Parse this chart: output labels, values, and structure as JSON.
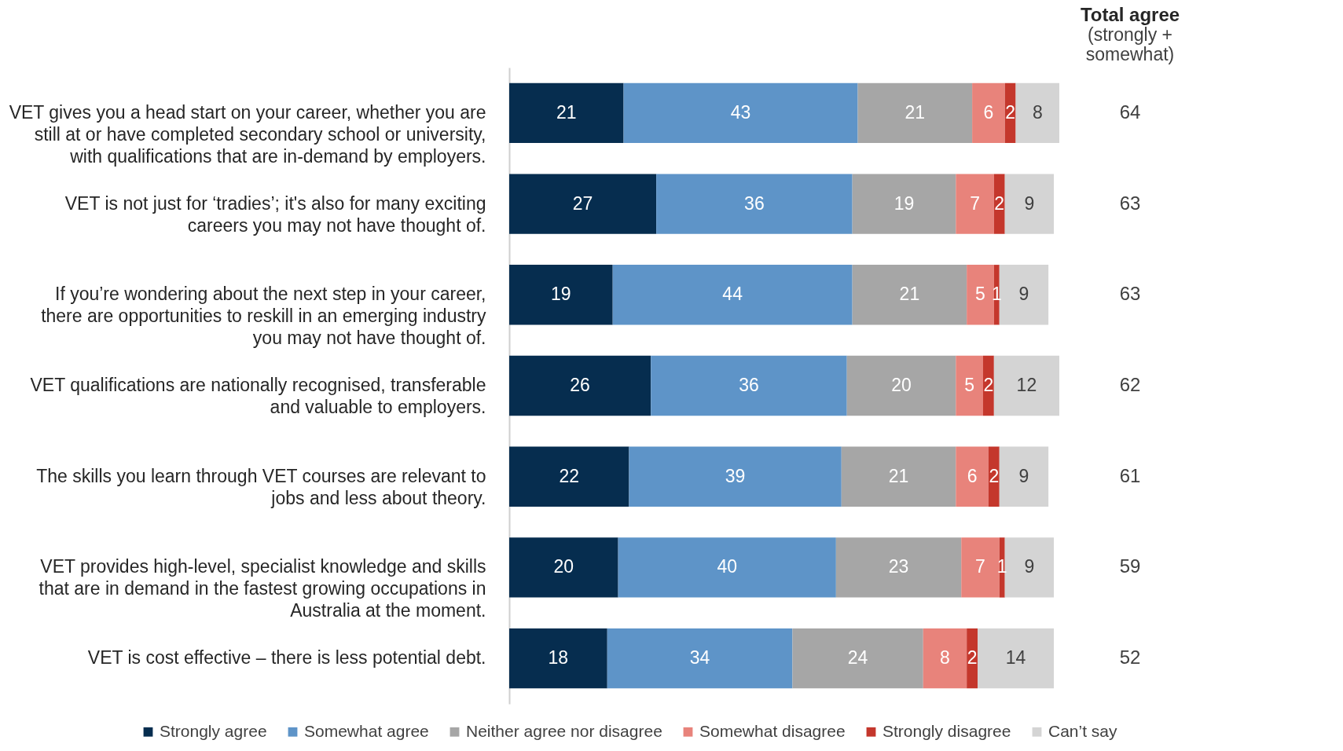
{
  "chart_data": {
    "type": "bar",
    "orientation": "horizontal",
    "stacked": true,
    "data_labels": true,
    "legend": "bottom",
    "categories": [
      "VET gives you a head start on your career, whether you are still at or have completed secondary school or university, with qualifications that are in-demand by employers.",
      "VET is not just for ‘tradies’; it's also for many exciting careers you may not have thought of.",
      "If you’re wondering about the next step in your career, there are opportunities to reskill in an emerging industry you may not have thought of.",
      "VET qualifications are nationally recognised, transferable and valuable to employers.",
      "The skills you learn through VET courses are relevant to jobs and less about theory.",
      "VET provides high-level, specialist knowledge and skills that are in demand in the fastest growing occupations in Australia at the moment.",
      "VET is cost effective – there is less potential debt."
    ],
    "series": [
      {
        "name": "Strongly agree",
        "color": "#062d4f",
        "values": [
          21,
          27,
          19,
          26,
          22,
          20,
          18
        ]
      },
      {
        "name": "Somewhat agree",
        "color": "#5e94c8",
        "values": [
          43,
          36,
          44,
          36,
          39,
          40,
          34
        ]
      },
      {
        "name": "Neither agree nor disagree",
        "color": "#a6a6a6",
        "values": [
          21,
          19,
          21,
          20,
          21,
          23,
          24
        ]
      },
      {
        "name": "Somewhat disagree",
        "color": "#e8837b",
        "values": [
          6,
          7,
          5,
          5,
          6,
          7,
          8
        ]
      },
      {
        "name": "Strongly disagree",
        "color": "#c4372c",
        "values": [
          2,
          2,
          1,
          2,
          2,
          1,
          2
        ]
      },
      {
        "name": "Can’t say",
        "color": "#d4d4d4",
        "values": [
          8,
          9,
          9,
          12,
          9,
          9,
          14
        ]
      }
    ],
    "annotations": [
      "Total agree",
      "(strongly + somewhat)",
      "64",
      "63",
      "63",
      "62",
      "61",
      "59",
      "52"
    ]
  }
}
